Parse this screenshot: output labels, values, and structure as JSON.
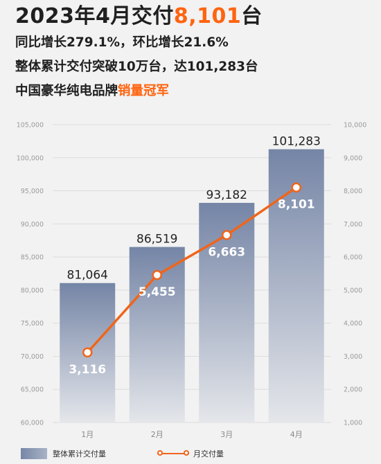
{
  "headline": {
    "title_prefix": "2023年4月交付",
    "title_number": "8,101",
    "title_suffix": "台",
    "line1": "同比增长279.1%，环比增长21.6%",
    "line2": "整体累计交付突破10万台，达101,283台",
    "line3_prefix": "中国豪华纯电品牌",
    "line3_highlight": "销量冠军"
  },
  "colors": {
    "accent": "#ff6410",
    "line": "#f0651a",
    "bar_top": "#7585a6",
    "bar_bottom": "#e4e6ea"
  },
  "chart_data": {
    "type": "bar",
    "categories": [
      "1月",
      "2月",
      "3月",
      "4月"
    ],
    "series": [
      {
        "name": "整体累计交付量",
        "type": "bar",
        "axis": "left",
        "values": [
          81064,
          86519,
          93182,
          101283
        ],
        "labels": [
          "81,064",
          "86,519",
          "93,182",
          "101,283"
        ]
      },
      {
        "name": "月交付量",
        "type": "line",
        "axis": "right",
        "values": [
          3116,
          5455,
          6663,
          8101
        ],
        "labels": [
          "3,116",
          "5,455",
          "6,663",
          "8,101"
        ]
      }
    ],
    "y_left": {
      "min": 60000,
      "max": 105000,
      "ticks": [
        60000,
        65000,
        70000,
        75000,
        80000,
        85000,
        90000,
        95000,
        100000,
        105000
      ],
      "tick_labels": [
        "60,000",
        "65,000",
        "70,000",
        "75,000",
        "80,000",
        "85,000",
        "90,000",
        "95,000",
        "100,000",
        "105,000"
      ]
    },
    "y_right": {
      "min": 1000,
      "max": 10000,
      "ticks": [
        1000,
        2000,
        3000,
        4000,
        5000,
        6000,
        7000,
        8000,
        9000,
        10000
      ],
      "tick_labels": [
        "1,000",
        "2,000",
        "3,000",
        "4,000",
        "5,000",
        "6,000",
        "7,000",
        "8,000",
        "9,000",
        "10,000"
      ]
    },
    "grid": true,
    "legend_position": "bottom-left"
  }
}
